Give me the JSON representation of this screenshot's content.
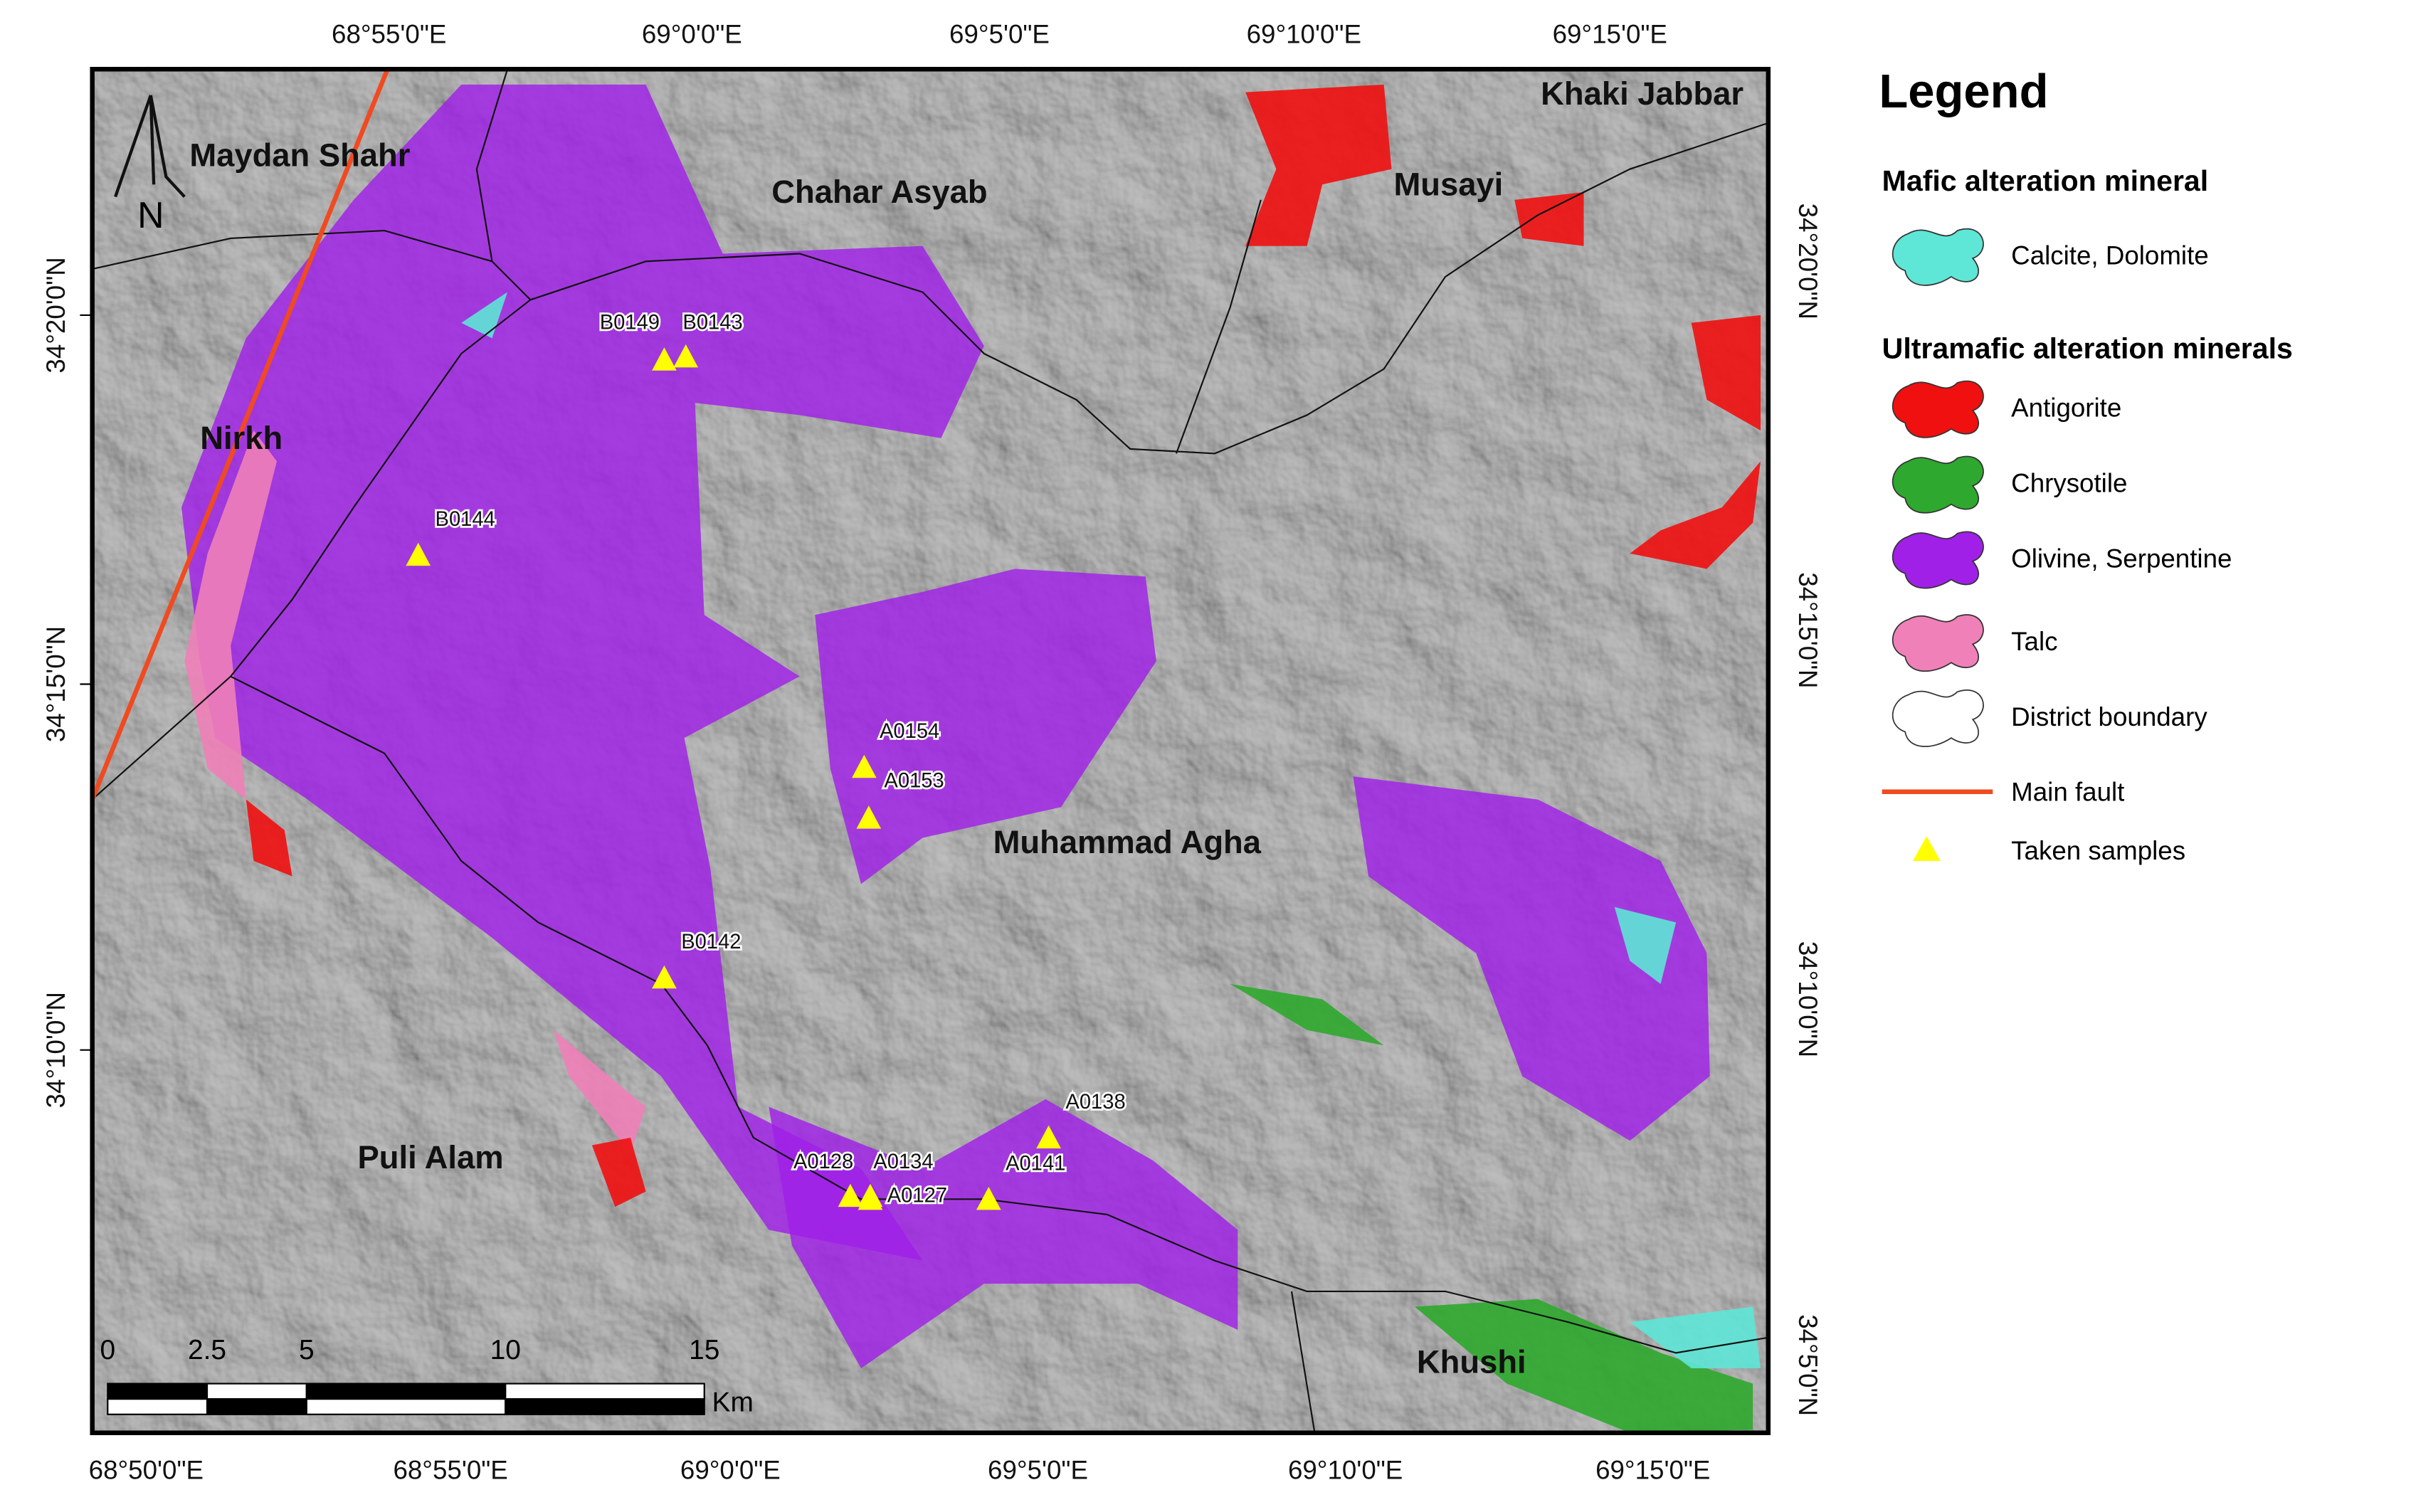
{
  "map": {
    "graticule": {
      "top": [
        "68°55'0\"E",
        "69°0'0\"E",
        "69°5'0\"E",
        "69°10'0\"E",
        "69°15'0\"E"
      ],
      "bottom": [
        "68°50'0\"E",
        "68°55'0\"E",
        "69°0'0\"E",
        "69°5'0\"E",
        "69°10'0\"E",
        "69°15'0\"E"
      ],
      "left": [
        "34°20'0\"N",
        "34°15'0\"N",
        "34°10'0\"N"
      ],
      "right": [
        "34°20'0\"N",
        "34°15'0\"N",
        "34°10'0\"N",
        "34°5'0\"N"
      ]
    },
    "places": [
      "Maydan Shahr",
      "Chahar Asyab",
      "Khaki Jabbar",
      "Musayi",
      "Nirkh",
      "Muhammad Agha",
      "Puli Alam",
      "Khushi"
    ],
    "samples": [
      "B0149",
      "B0143",
      "B0144",
      "A0154",
      "A0153",
      "B0142",
      "A0138",
      "A0141",
      "A0128",
      "A0134",
      "A0127"
    ],
    "north": "N",
    "scale_bar": {
      "ticks": [
        0,
        2.5,
        5,
        10,
        15
      ],
      "unit": "Km"
    }
  },
  "legend": {
    "title": "Legend",
    "sections": [
      {
        "heading": "Mafic alteration mineral",
        "items": [
          {
            "label": "Calcite, Dolomite",
            "color": "#5ee6d6",
            "symbol": "patch"
          }
        ]
      },
      {
        "heading": "Ultramafic alteration minerals",
        "items": [
          {
            "label": "Antigorite",
            "color": "#f01010",
            "symbol": "patch"
          },
          {
            "label": "Chrysotile",
            "color": "#2ea82e",
            "symbol": "patch"
          },
          {
            "label": "Olivine, Serpentine",
            "color": "#a020e8",
            "symbol": "patch"
          },
          {
            "label": "Talc",
            "color": "#f080b8",
            "symbol": "patch"
          },
          {
            "label": "District boundary",
            "color": "#ffffff",
            "symbol": "patch"
          },
          {
            "label": "Main fault",
            "color": "#f04a20",
            "symbol": "line"
          },
          {
            "label": "Taken samples",
            "color": "#ffff00",
            "symbol": "triangle"
          }
        ]
      }
    ]
  }
}
